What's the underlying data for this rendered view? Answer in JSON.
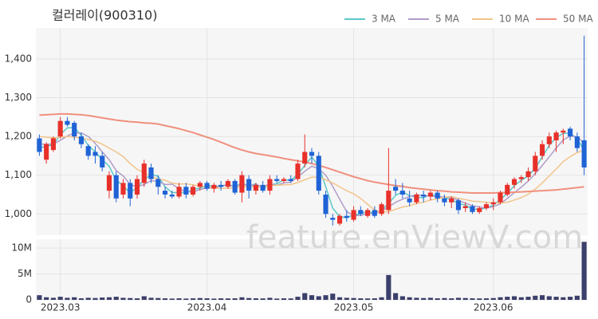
{
  "chart_data": {
    "type": "candlestick",
    "title": "컬러레이(900310)",
    "watermark": "feature.enViewV.com",
    "up_color": "#e8302a",
    "down_color": "#1f63d6",
    "grid": true,
    "categories": [
      null,
      null,
      null,
      "2023.03",
      null,
      null,
      null,
      null,
      null,
      null,
      null,
      null,
      null,
      null,
      null,
      null,
      null,
      null,
      null,
      null,
      null,
      null,
      null,
      null,
      "2023.04",
      null,
      null,
      null,
      null,
      null,
      null,
      null,
      null,
      null,
      null,
      null,
      null,
      null,
      null,
      null,
      null,
      null,
      null,
      null,
      null,
      "2023.05",
      null,
      null,
      null,
      null,
      null,
      null,
      null,
      null,
      null,
      null,
      null,
      null,
      null,
      null,
      null,
      null,
      null,
      null,
      null,
      "2023.06",
      null,
      null,
      null,
      null,
      null,
      null,
      null,
      null,
      null,
      null,
      null,
      null,
      null
    ],
    "open": [
      1195,
      1140,
      1165,
      1200,
      1240,
      1235,
      1200,
      1175,
      1160,
      1150,
      1060,
      1100,
      1050,
      1080,
      1050,
      1080,
      1120,
      1090,
      1060,
      1050,
      1045,
      1070,
      1050,
      1070,
      1080,
      1065,
      1075,
      1070,
      1085,
      1055,
      1090,
      1060,
      1075,
      1060,
      1090,
      1085,
      1090,
      1090,
      1130,
      1160,
      1150,
      1050,
      990,
      975,
      995,
      985,
      1010,
      995,
      1010,
      1000,
      1010,
      1070,
      1060,
      1040,
      1030,
      1050,
      1045,
      1055,
      1040,
      1030,
      1035,
      1015,
      1020,
      1005,
      1015,
      1025,
      1030,
      1050,
      1075,
      1090,
      1095,
      1110,
      1150,
      1180,
      1190,
      1210,
      1220,
      1200,
      1190
    ],
    "high": [
      1205,
      1185,
      1200,
      1250,
      1250,
      1240,
      1210,
      1180,
      1175,
      1160,
      1110,
      1110,
      1090,
      1090,
      1100,
      1140,
      1130,
      1100,
      1070,
      1060,
      1080,
      1080,
      1075,
      1085,
      1085,
      1080,
      1085,
      1090,
      1090,
      1110,
      1100,
      1080,
      1085,
      1100,
      1100,
      1095,
      1100,
      1140,
      1205,
      1170,
      1160,
      1060,
      1000,
      1000,
      1010,
      1020,
      1020,
      1015,
      1020,
      1030,
      1170,
      1090,
      1080,
      1060,
      1055,
      1060,
      1060,
      1060,
      1050,
      1045,
      1040,
      1030,
      1025,
      1020,
      1030,
      1040,
      1060,
      1080,
      1095,
      1100,
      1120,
      1160,
      1190,
      1210,
      1215,
      1220,
      1225,
      1210,
      1460
    ],
    "low": [
      1150,
      1130,
      1160,
      1195,
      1225,
      1190,
      1170,
      1140,
      1130,
      1110,
      1040,
      1030,
      1040,
      1020,
      1040,
      1070,
      1080,
      1050,
      1040,
      1040,
      1040,
      1040,
      1045,
      1060,
      1060,
      1055,
      1060,
      1065,
      1050,
      1030,
      1040,
      1050,
      1055,
      1050,
      1080,
      1080,
      1080,
      1085,
      1120,
      1130,
      1050,
      990,
      970,
      970,
      980,
      980,
      995,
      990,
      990,
      995,
      1000,
      1050,
      1040,
      1020,
      1025,
      1030,
      1035,
      1030,
      1020,
      1015,
      1000,
      1005,
      1000,
      1000,
      1010,
      1010,
      1025,
      1045,
      1065,
      1080,
      1085,
      1100,
      1140,
      1170,
      1160,
      1180,
      1190,
      1160,
      1100
    ],
    "close": [
      1160,
      1180,
      1195,
      1240,
      1230,
      1200,
      1180,
      1150,
      1150,
      1120,
      1100,
      1040,
      1080,
      1040,
      1090,
      1130,
      1090,
      1070,
      1050,
      1045,
      1070,
      1050,
      1070,
      1080,
      1065,
      1075,
      1070,
      1085,
      1055,
      1100,
      1060,
      1075,
      1060,
      1090,
      1085,
      1090,
      1085,
      1130,
      1160,
      1150,
      1060,
      1000,
      985,
      995,
      990,
      1010,
      1000,
      1010,
      995,
      1025,
      1060,
      1060,
      1050,
      1030,
      1050,
      1045,
      1055,
      1040,
      1030,
      1040,
      1010,
      1020,
      1005,
      1015,
      1025,
      1030,
      1055,
      1075,
      1090,
      1095,
      1110,
      1150,
      1180,
      1200,
      1210,
      1215,
      1200,
      1170,
      1120
    ],
    "series": [
      {
        "name": "3 MA",
        "color": "#5cc8c8",
        "values": [
          1170,
          1175,
          1178,
          1205,
          1222,
          1223,
          1203,
          1177,
          1160,
          1140,
          1123,
          1087,
          1073,
          1053,
          1070,
          1087,
          1103,
          1097,
          1070,
          1055,
          1055,
          1055,
          1063,
          1067,
          1072,
          1073,
          1070,
          1077,
          1070,
          1080,
          1072,
          1078,
          1065,
          1075,
          1078,
          1088,
          1087,
          1102,
          1125,
          1147,
          1123,
          1070,
          1015,
          993,
          990,
          998,
          1000,
          1007,
          1002,
          1010,
          1027,
          1048,
          1057,
          1047,
          1043,
          1042,
          1050,
          1047,
          1042,
          1037,
          1027,
          1023,
          1012,
          1013,
          1015,
          1023,
          1037,
          1053,
          1073,
          1087,
          1098,
          1118,
          1147,
          1177,
          1197,
          1208,
          1208,
          1195,
          1163
        ]
      },
      {
        "name": "5 MA",
        "color": "#b09cc8",
        "values": [
          1180,
          1180,
          1180,
          1190,
          1201,
          1209,
          1209,
          1200,
          1182,
          1160,
          1140,
          1112,
          1098,
          1076,
          1070,
          1076,
          1086,
          1084,
          1076,
          1077,
          1065,
          1057,
          1057,
          1063,
          1067,
          1068,
          1072,
          1075,
          1070,
          1077,
          1073,
          1075,
          1070,
          1078,
          1074,
          1080,
          1082,
          1096,
          1110,
          1123,
          1117,
          1100,
          1071,
          1038,
          1006,
          996,
          996,
          1001,
          1001,
          1008,
          1018,
          1030,
          1038,
          1045,
          1050,
          1047,
          1046,
          1044,
          1044,
          1042,
          1035,
          1028,
          1021,
          1018,
          1015,
          1019,
          1026,
          1040,
          1055,
          1069,
          1085,
          1104,
          1125,
          1147,
          1170,
          1191,
          1201,
          1199,
          1183
        ]
      },
      {
        "name": "10 MA",
        "color": "#f2c48a",
        "values": [
          1200,
          1198,
          1196,
          1198,
          1200,
          1198,
          1196,
          1192,
          1188,
          1180,
          1170,
          1160,
          1148,
          1130,
          1115,
          1107,
          1097,
          1090,
          1087,
          1080,
          1077,
          1078,
          1075,
          1072,
          1070,
          1068,
          1066,
          1066,
          1068,
          1071,
          1070,
          1070,
          1070,
          1073,
          1074,
          1075,
          1076,
          1081,
          1088,
          1095,
          1095,
          1088,
          1080,
          1070,
          1060,
          1052,
          1040,
          1025,
          1010,
          1005,
          1006,
          1012,
          1018,
          1021,
          1027,
          1030,
          1036,
          1039,
          1043,
          1045,
          1040,
          1037,
          1033,
          1032,
          1030,
          1028,
          1028,
          1030,
          1036,
          1042,
          1051,
          1064,
          1080,
          1098,
          1116,
          1135,
          1148,
          1158,
          1165
        ]
      },
      {
        "name": "50 MA",
        "color": "#f0907e",
        "values": [
          1255,
          1256,
          1257,
          1258,
          1258,
          1257,
          1256,
          1254,
          1251,
          1248,
          1245,
          1242,
          1240,
          1238,
          1237,
          1235,
          1234,
          1232,
          1228,
          1224,
          1220,
          1215,
          1210,
          1204,
          1198,
          1192,
          1185,
          1178,
          1171,
          1165,
          1160,
          1156,
          1153,
          1150,
          1147,
          1143,
          1140,
          1137,
          1134,
          1130,
          1125,
          1120,
          1114,
          1108,
          1102,
          1096,
          1091,
          1086,
          1082,
          1079,
          1076,
          1073,
          1071,
          1068,
          1066,
          1064,
          1062,
          1060,
          1059,
          1057,
          1056,
          1055,
          1054,
          1054,
          1054,
          1054,
          1055,
          1055,
          1056,
          1057,
          1058,
          1059,
          1060,
          1061,
          1062,
          1064,
          1066,
          1068,
          1070
        ]
      }
    ],
    "ylim": [
      945,
      1480
    ],
    "yticks": [
      {
        "value": 1000,
        "label": "1,000"
      },
      {
        "value": 1100,
        "label": "1,100"
      },
      {
        "value": 1200,
        "label": "1,200"
      },
      {
        "value": 1300,
        "label": "1,300"
      },
      {
        "value": 1400,
        "label": "1,400"
      }
    ],
    "volume": {
      "color": "#3b3f6b",
      "values": [
        900000,
        500000,
        400000,
        600000,
        400000,
        500000,
        300000,
        400000,
        350000,
        450000,
        500000,
        600000,
        400000,
        350000,
        300000,
        700000,
        400000,
        350000,
        300000,
        250000,
        300000,
        250000,
        300000,
        350000,
        300000,
        250000,
        300000,
        280000,
        300000,
        500000,
        350000,
        300000,
        280000,
        400000,
        250000,
        300000,
        280000,
        600000,
        1300000,
        900000,
        700000,
        900000,
        1200000,
        500000,
        400000,
        350000,
        300000,
        280000,
        300000,
        500000,
        4800000,
        1300000,
        700000,
        500000,
        400000,
        350000,
        400000,
        300000,
        350000,
        300000,
        400000,
        350000,
        300000,
        280000,
        300000,
        350000,
        500000,
        600000,
        700000,
        500000,
        600000,
        800000,
        900000,
        700000,
        600000,
        500000,
        600000,
        800000,
        11200000
      ],
      "ylim": [
        0,
        11700000
      ],
      "yticks": [
        0,
        {
          "value": 5000000,
          "label": "5M"
        },
        {
          "value": 10000000,
          "label": "10M"
        }
      ]
    }
  }
}
